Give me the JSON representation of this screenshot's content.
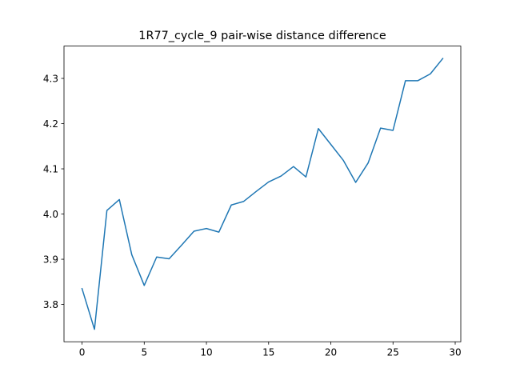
{
  "chart_data": {
    "type": "line",
    "title": "1R77_cycle_9 pair-wise distance difference",
    "xlabel": "",
    "ylabel": "",
    "xlim": [
      -1.45,
      30.45
    ],
    "ylim": [
      3.7175,
      4.3715
    ],
    "xticks": [
      0,
      5,
      10,
      15,
      20,
      25,
      30
    ],
    "xtick_labels": [
      "0",
      "5",
      "10",
      "15",
      "20",
      "25",
      "30"
    ],
    "yticks": [
      3.8,
      3.9,
      4.0,
      4.1,
      4.2,
      4.3
    ],
    "ytick_labels": [
      "3.8",
      "3.9",
      "4.0",
      "4.1",
      "4.2",
      "4.3"
    ],
    "grid": false,
    "series": [
      {
        "color": "#1f77b4",
        "x": [
          0,
          1,
          2,
          3,
          4,
          5,
          6,
          7,
          8,
          9,
          10,
          11,
          12,
          13,
          14,
          15,
          16,
          17,
          18,
          19,
          20,
          21,
          22,
          23,
          24,
          25,
          26,
          27,
          28,
          29
        ],
        "y": [
          3.835,
          3.745,
          4.008,
          4.032,
          3.91,
          3.842,
          3.905,
          3.901,
          3.931,
          3.962,
          3.968,
          3.96,
          4.02,
          4.028,
          4.05,
          4.071,
          4.084,
          4.105,
          4.082,
          4.189,
          4.154,
          4.119,
          4.07,
          4.113,
          4.19,
          4.185,
          4.295,
          4.295,
          4.31,
          4.344
        ]
      }
    ]
  }
}
